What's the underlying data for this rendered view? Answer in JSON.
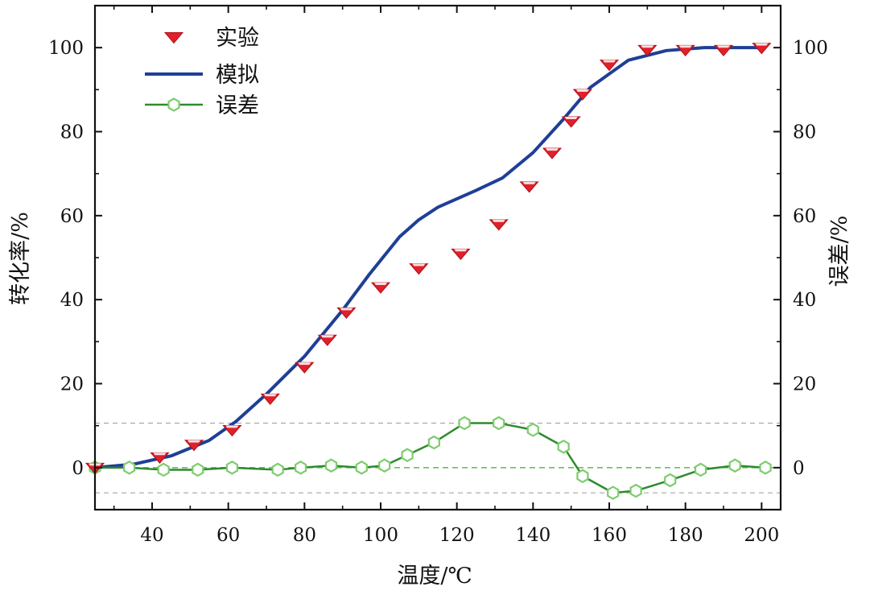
{
  "chart_data": {
    "type": "line",
    "title": "",
    "xlabel": "温度/℃",
    "ylabel": "转化率/%",
    "y2label": "误差/%",
    "xlim": [
      25,
      205
    ],
    "ylim": [
      -10,
      110
    ],
    "xticks": [
      40,
      60,
      80,
      100,
      120,
      140,
      160,
      180,
      200
    ],
    "yticks": [
      0,
      20,
      40,
      60,
      80,
      100
    ],
    "grid": false,
    "legend_position": "top-left",
    "reference_lines": [
      10.6,
      0,
      -6
    ],
    "colors": {
      "experiment": "#e0202a",
      "simulation": "#1f3f96",
      "error": "#2e8b2e",
      "error_marker": "#7dcc6e",
      "reference": "#9a9a9a",
      "zero_line": "#6cbf5e"
    },
    "series": [
      {
        "name": "实验",
        "kind": "scatter",
        "marker": "triangle-down",
        "x": [
          25,
          42,
          51,
          61,
          71,
          80,
          86,
          91,
          100,
          110,
          121,
          131,
          139,
          145,
          150,
          153,
          160,
          170,
          180,
          190,
          200
        ],
        "y": [
          0,
          2.5,
          5.5,
          9,
          16.5,
          24,
          30.5,
          37,
          43,
          47.5,
          51,
          58,
          67,
          75,
          82.5,
          89,
          96,
          99.5,
          99.5,
          99.5,
          100
        ]
      },
      {
        "name": "模拟",
        "kind": "line",
        "x": [
          25,
          35,
          45,
          55,
          62,
          70,
          80,
          90,
          97,
          105,
          110,
          115,
          125,
          132,
          140,
          148,
          155,
          165,
          175,
          185,
          200
        ],
        "y": [
          0,
          0.8,
          2.8,
          6.5,
          11,
          17.5,
          26.5,
          37.5,
          46,
          55,
          59,
          62,
          66,
          69,
          75,
          83,
          90.5,
          97,
          99.3,
          100,
          100
        ]
      },
      {
        "name": "误差",
        "kind": "line-marker",
        "marker": "hexagon",
        "x": [
          25,
          34,
          43,
          52,
          61,
          73,
          79,
          87,
          95,
          101,
          107,
          114,
          122,
          131,
          140,
          148,
          153,
          161,
          167,
          176,
          184,
          193,
          201
        ],
        "y": [
          0,
          0,
          -0.5,
          -0.5,
          0,
          -0.5,
          0,
          0.5,
          0,
          0.5,
          3,
          6,
          10.6,
          10.6,
          9,
          5,
          -2,
          -6,
          -5.5,
          -3,
          -0.5,
          0.5,
          0
        ]
      }
    ]
  }
}
